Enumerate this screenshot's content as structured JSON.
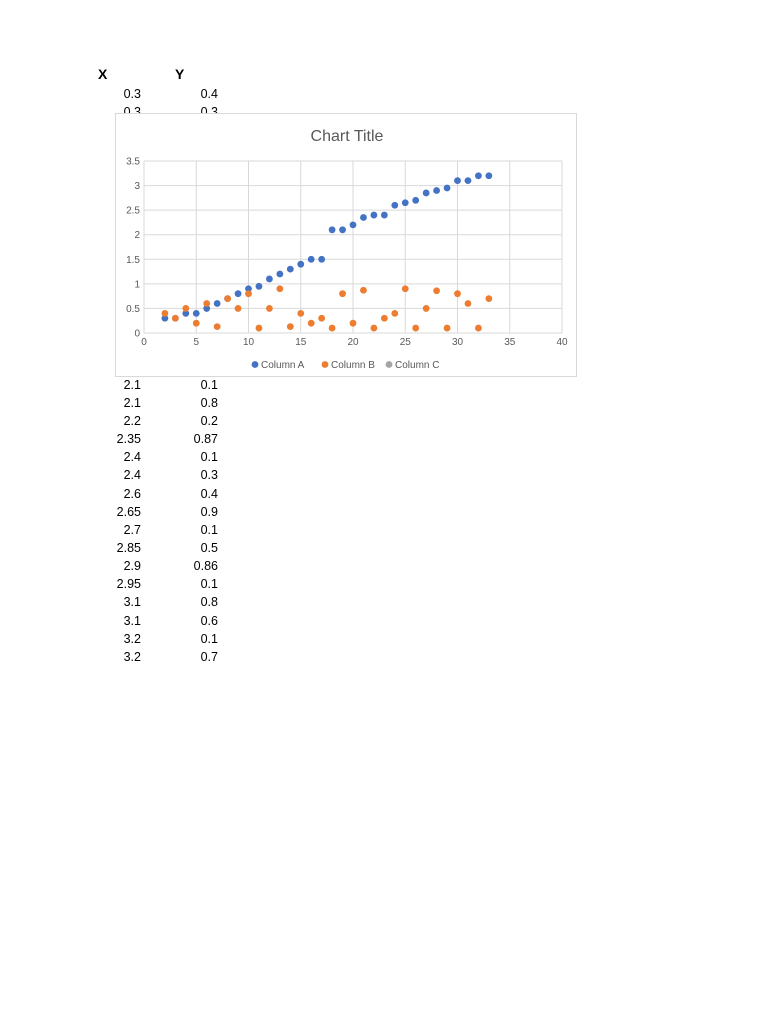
{
  "sheet": {
    "header_x": "X",
    "header_y": "Y",
    "rows": [
      {
        "x": "0.3",
        "y": "0.4"
      },
      {
        "x": "0.3",
        "y": "0.3"
      },
      {
        "x": "2.1",
        "y": "0.1"
      },
      {
        "x": "2.1",
        "y": "0.8"
      },
      {
        "x": "2.2",
        "y": "0.2"
      },
      {
        "x": "2.35",
        "y": "0.87"
      },
      {
        "x": "2.4",
        "y": "0.1"
      },
      {
        "x": "2.4",
        "y": "0.3"
      },
      {
        "x": "2.6",
        "y": "0.4"
      },
      {
        "x": "2.65",
        "y": "0.9"
      },
      {
        "x": "2.7",
        "y": "0.1"
      },
      {
        "x": "2.85",
        "y": "0.5"
      },
      {
        "x": "2.9",
        "y": "0.86"
      },
      {
        "x": "2.95",
        "y": "0.1"
      },
      {
        "x": "3.1",
        "y": "0.8"
      },
      {
        "x": "3.1",
        "y": "0.6"
      },
      {
        "x": "3.2",
        "y": "0.1"
      },
      {
        "x": "3.2",
        "y": "0.7"
      }
    ]
  },
  "chart_data": {
    "type": "scatter",
    "title": "Chart Title",
    "xlim": [
      0,
      40
    ],
    "ylim": [
      0,
      3.5
    ],
    "x_ticks": [
      "0",
      "5",
      "10",
      "15",
      "20",
      "25",
      "30",
      "35",
      "40"
    ],
    "y_ticks": [
      "0",
      "0.5",
      "1",
      "1.5",
      "2",
      "2.5",
      "3",
      "3.5"
    ],
    "grid": true,
    "legend_position": "bottom",
    "series": [
      {
        "name": "Column A",
        "color": "#4472c4",
        "x": [
          2,
          3,
          4,
          5,
          6,
          7,
          8,
          9,
          10,
          11,
          12,
          13,
          14,
          15,
          16,
          17,
          18,
          19,
          20,
          21,
          22,
          23,
          24,
          25,
          26,
          27,
          28,
          29,
          30,
          31,
          32,
          33
        ],
        "y": [
          0.3,
          0.3,
          0.4,
          0.4,
          0.5,
          0.6,
          0.7,
          0.8,
          0.9,
          0.95,
          1.1,
          1.2,
          1.3,
          1.4,
          1.5,
          1.5,
          2.1,
          2.1,
          2.2,
          2.35,
          2.4,
          2.4,
          2.6,
          2.65,
          2.7,
          2.85,
          2.9,
          2.95,
          3.1,
          3.1,
          3.2,
          3.2
        ]
      },
      {
        "name": "Column B",
        "color": "#ed7d31",
        "x": [
          2,
          3,
          4,
          5,
          6,
          7,
          8,
          9,
          10,
          11,
          12,
          13,
          14,
          15,
          16,
          17,
          18,
          19,
          20,
          21,
          22,
          23,
          24,
          25,
          26,
          27,
          28,
          29,
          30,
          31,
          32,
          33
        ],
        "y": [
          0.4,
          0.3,
          0.5,
          0.2,
          0.6,
          0.13,
          0.7,
          0.5,
          0.8,
          0.1,
          0.5,
          0.9,
          0.13,
          0.4,
          0.2,
          0.3,
          0.1,
          0.8,
          0.2,
          0.87,
          0.1,
          0.3,
          0.4,
          0.9,
          0.1,
          0.5,
          0.86,
          0.1,
          0.8,
          0.6,
          0.1,
          0.7
        ]
      },
      {
        "name": "Column C",
        "color": "#a5a5a5",
        "x": [],
        "y": []
      }
    ]
  }
}
